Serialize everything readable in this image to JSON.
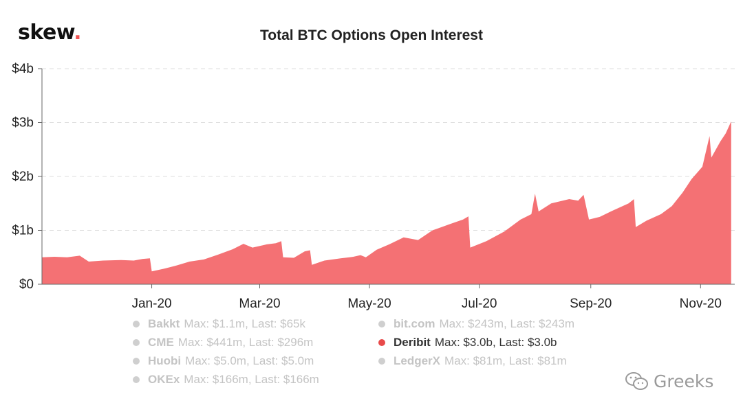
{
  "brand": {
    "name": "skew",
    "dot": "."
  },
  "chart_data": {
    "type": "area",
    "title": "Total BTC Options Open Interest",
    "xlabel": "",
    "ylabel": "",
    "x_range": [
      "2019-11-01",
      "2020-11-20"
    ],
    "ylim": [
      0,
      4
    ],
    "y_ticks": [
      {
        "value": 0,
        "label": "$0"
      },
      {
        "value": 1,
        "label": "$1b"
      },
      {
        "value": 2,
        "label": "$2b"
      },
      {
        "value": 3,
        "label": "$3b"
      },
      {
        "value": 4,
        "label": "$4b"
      }
    ],
    "x_ticks": [
      {
        "date": "2020-01-01",
        "label": "Jan-20"
      },
      {
        "date": "2020-03-01",
        "label": "Mar-20"
      },
      {
        "date": "2020-05-01",
        "label": "May-20"
      },
      {
        "date": "2020-07-01",
        "label": "Jul-20"
      },
      {
        "date": "2020-09-01",
        "label": "Sep-20"
      },
      {
        "date": "2020-11-01",
        "label": "Nov-20"
      }
    ],
    "grid": true,
    "series": [
      {
        "name": "Deribit",
        "color": "#f47174",
        "points": [
          [
            "2019-11-01",
            0.5
          ],
          [
            "2019-11-08",
            0.51
          ],
          [
            "2019-11-15",
            0.5
          ],
          [
            "2019-11-22",
            0.53
          ],
          [
            "2019-11-27",
            0.42
          ],
          [
            "2019-12-05",
            0.44
          ],
          [
            "2019-12-15",
            0.45
          ],
          [
            "2019-12-22",
            0.44
          ],
          [
            "2019-12-27",
            0.47
          ],
          [
            "2019-12-31",
            0.48
          ],
          [
            "2020-01-01",
            0.24
          ],
          [
            "2020-01-08",
            0.29
          ],
          [
            "2020-01-15",
            0.35
          ],
          [
            "2020-01-22",
            0.42
          ],
          [
            "2020-01-30",
            0.46
          ],
          [
            "2020-02-07",
            0.55
          ],
          [
            "2020-02-15",
            0.65
          ],
          [
            "2020-02-21",
            0.75
          ],
          [
            "2020-02-26",
            0.68
          ],
          [
            "2020-03-05",
            0.74
          ],
          [
            "2020-03-10",
            0.76
          ],
          [
            "2020-03-13",
            0.8
          ],
          [
            "2020-03-14",
            0.5
          ],
          [
            "2020-03-20",
            0.49
          ],
          [
            "2020-03-26",
            0.61
          ],
          [
            "2020-03-29",
            0.63
          ],
          [
            "2020-03-30",
            0.36
          ],
          [
            "2020-04-06",
            0.44
          ],
          [
            "2020-04-15",
            0.48
          ],
          [
            "2020-04-22",
            0.51
          ],
          [
            "2020-04-26",
            0.54
          ],
          [
            "2020-04-29",
            0.5
          ],
          [
            "2020-05-05",
            0.64
          ],
          [
            "2020-05-12",
            0.74
          ],
          [
            "2020-05-20",
            0.87
          ],
          [
            "2020-05-28",
            0.82
          ],
          [
            "2020-06-05",
            1.0
          ],
          [
            "2020-06-15",
            1.12
          ],
          [
            "2020-06-22",
            1.2
          ],
          [
            "2020-06-25",
            1.26
          ],
          [
            "2020-06-26",
            0.68
          ],
          [
            "2020-07-05",
            0.8
          ],
          [
            "2020-07-15",
            0.98
          ],
          [
            "2020-07-24",
            1.2
          ],
          [
            "2020-07-30",
            1.3
          ],
          [
            "2020-08-01",
            1.68
          ],
          [
            "2020-08-03",
            1.35
          ],
          [
            "2020-08-10",
            1.5
          ],
          [
            "2020-08-20",
            1.58
          ],
          [
            "2020-08-25",
            1.55
          ],
          [
            "2020-08-28",
            1.66
          ],
          [
            "2020-08-31",
            1.2
          ],
          [
            "2020-09-06",
            1.25
          ],
          [
            "2020-09-14",
            1.38
          ],
          [
            "2020-09-22",
            1.5
          ],
          [
            "2020-09-25",
            1.58
          ],
          [
            "2020-09-26",
            1.06
          ],
          [
            "2020-10-02",
            1.18
          ],
          [
            "2020-10-10",
            1.3
          ],
          [
            "2020-10-16",
            1.45
          ],
          [
            "2020-10-22",
            1.7
          ],
          [
            "2020-10-27",
            1.95
          ],
          [
            "2020-11-02",
            2.18
          ],
          [
            "2020-11-06",
            2.75
          ],
          [
            "2020-11-07",
            2.35
          ],
          [
            "2020-11-12",
            2.65
          ],
          [
            "2020-11-15",
            2.8
          ],
          [
            "2020-11-18",
            3.02
          ]
        ]
      }
    ]
  },
  "legend": [
    {
      "name": "Bakkt",
      "detail": "Max: $1.1m, Last: $65k",
      "active": false
    },
    {
      "name": "CME",
      "detail": "Max: $441m, Last: $296m",
      "active": false
    },
    {
      "name": "Huobi",
      "detail": "Max: $5.0m, Last: $5.0m",
      "active": false
    },
    {
      "name": "OKEx",
      "detail": "Max: $166m, Last: $166m",
      "active": false
    },
    {
      "name": "bit.com",
      "detail": "Max: $243m, Last: $243m",
      "active": false
    },
    {
      "name": "Deribit",
      "detail": "Max: $3.0b, Last: $3.0b",
      "active": true
    },
    {
      "name": "LedgerX",
      "detail": "Max: $81m, Last: $81m",
      "active": false
    }
  ],
  "colors": {
    "active_marker": "#e84a4a",
    "inactive_marker": "#cfcfcf",
    "brand_dot": "#f05454"
  },
  "watermark": {
    "text": "Greeks",
    "icon": "wechat-icon"
  }
}
